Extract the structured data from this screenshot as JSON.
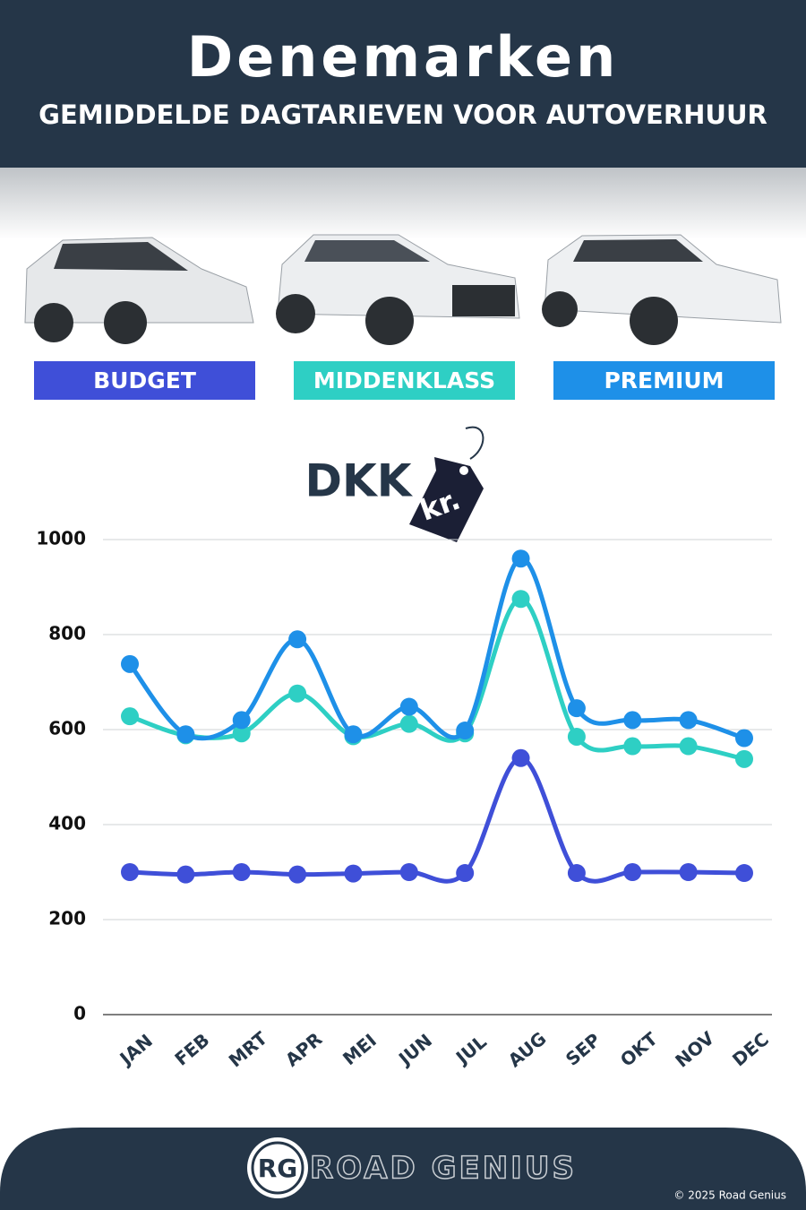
{
  "chart_data": {
    "type": "line",
    "title": "Denemarken",
    "subtitle": "GEMIDDELDE DAGTARIEVEN VOOR AUTOVERHUUR",
    "unit_label": "DKK",
    "tag_label": "kr.",
    "categories": [
      "JAN",
      "FEB",
      "MRT",
      "APR",
      "MEI",
      "JUN",
      "JUL",
      "AUG",
      "SEP",
      "OKT",
      "NOV",
      "DEC"
    ],
    "series": [
      {
        "name": "BUDGET",
        "color": "#3f4fd8",
        "values": [
          300,
          295,
          300,
          295,
          297,
          300,
          298,
          540,
          298,
          300,
          300,
          298
        ]
      },
      {
        "name": "MIDDENKLASS",
        "color": "#2ecfc4",
        "values": [
          628,
          588,
          592,
          676,
          586,
          612,
          592,
          875,
          585,
          565,
          565,
          538
        ]
      },
      {
        "name": "PREMIUM",
        "color": "#1e90e8",
        "values": [
          738,
          590,
          620,
          790,
          590,
          648,
          598,
          960,
          645,
          620,
          620,
          582
        ]
      }
    ],
    "ylim": [
      0,
      1000
    ],
    "yticks": [
      0,
      200,
      400,
      600,
      800,
      1000
    ],
    "grid": true
  },
  "footer": {
    "logo": "RG",
    "brand": "ROAD GENIUS",
    "copyright": "© 2025 Road Genius"
  }
}
